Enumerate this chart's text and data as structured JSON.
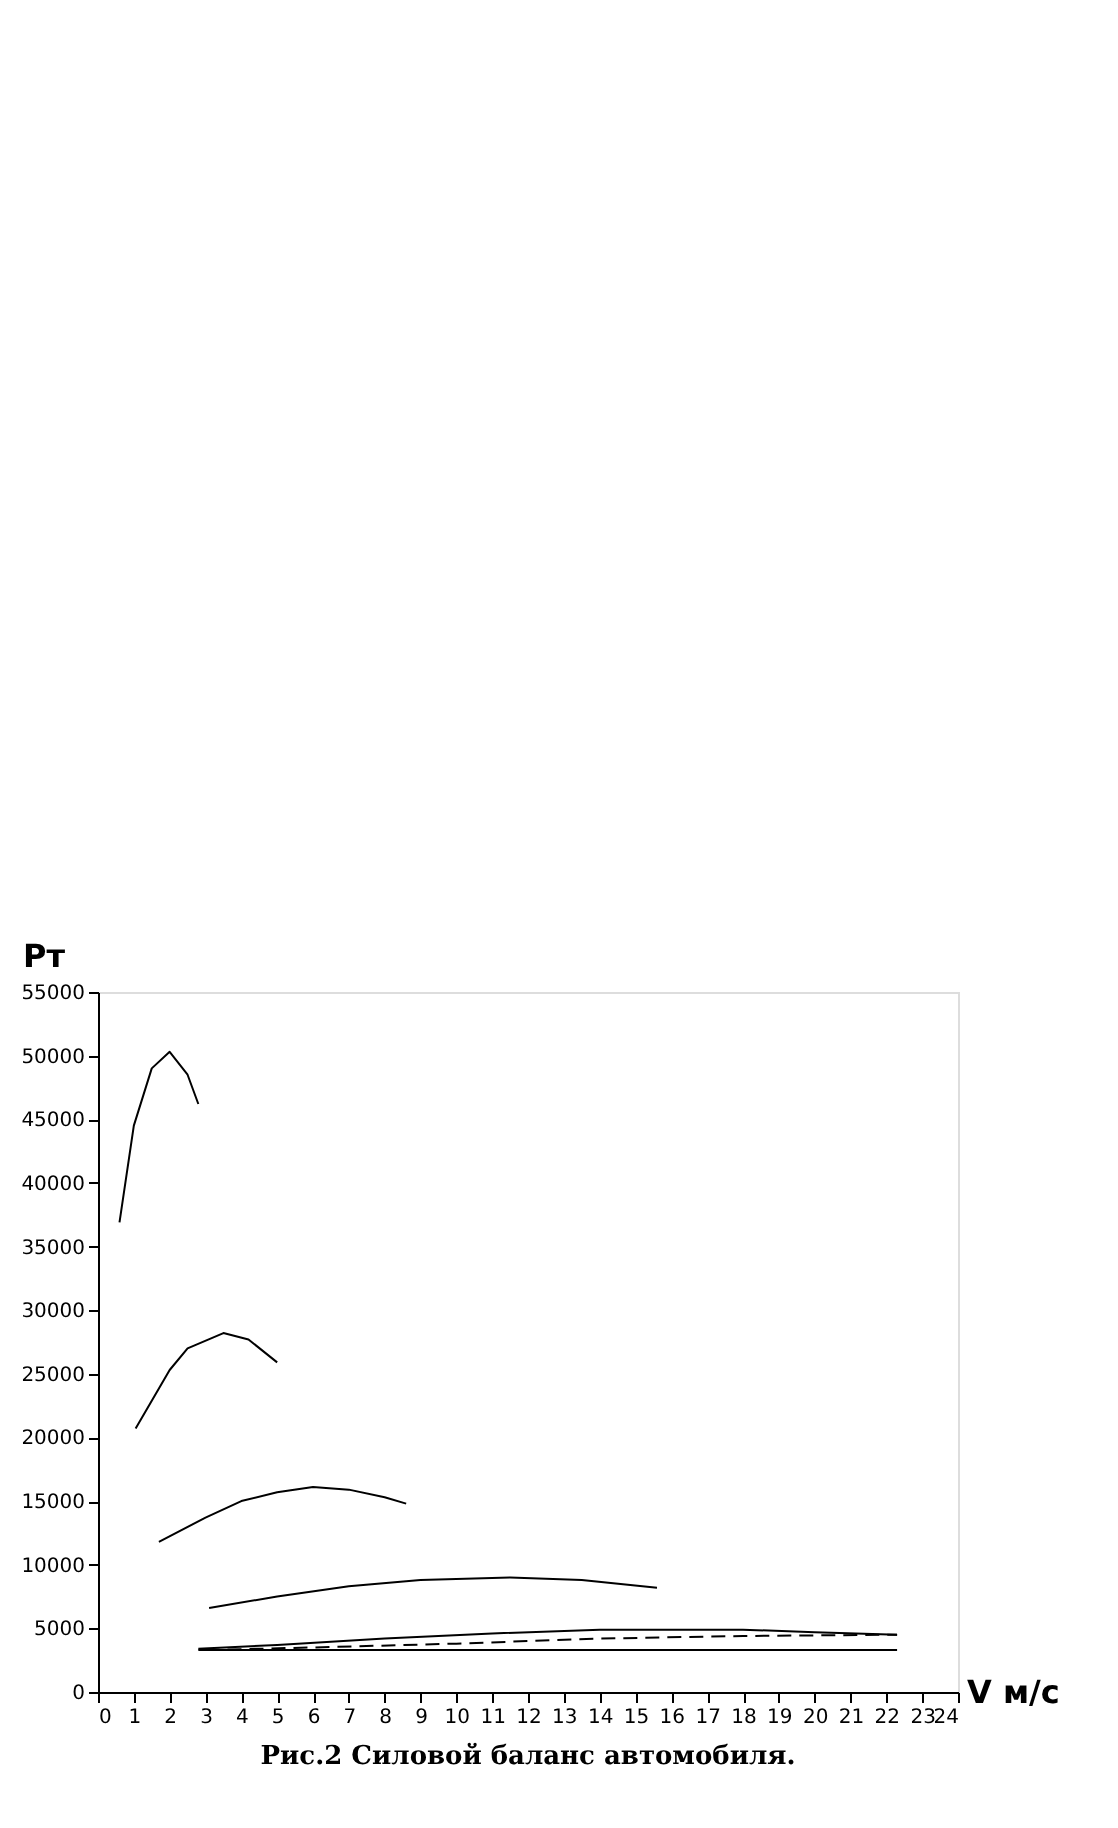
{
  "chart_data": {
    "type": "line",
    "xlabel": "V м/с",
    "ylabel": "Рт",
    "xlim": [
      0,
      24
    ],
    "xticks": [
      0,
      1,
      2,
      3,
      4,
      5,
      6,
      7,
      8,
      9,
      10,
      11,
      12,
      13,
      14,
      15,
      16,
      17,
      18,
      19,
      20,
      21,
      22,
      23,
      24
    ],
    "ylim": [
      0,
      55000
    ],
    "yticks": [
      0,
      5000,
      10000,
      15000,
      20000,
      25000,
      30000,
      35000,
      40000,
      45000,
      50000,
      55000
    ],
    "grid": false,
    "marker": "none",
    "series": [
      {
        "color": "#000000",
        "line_style": "solid",
        "x": [
          0.6,
          1.0,
          1.5,
          2.0,
          2.5,
          2.8
        ],
        "values": [
          36900,
          44500,
          49000,
          50300,
          48500,
          46200
        ]
      },
      {
        "color": "#000000",
        "line_style": "solid",
        "x": [
          1.05,
          2.0,
          2.5,
          3.5,
          4.2,
          5.0
        ],
        "values": [
          20700,
          25300,
          27000,
          28200,
          27700,
          25900
        ]
      },
      {
        "color": "#000000",
        "line_style": "solid",
        "x": [
          1.7,
          3.0,
          4.0,
          5.0,
          6.0,
          7.0,
          8.0,
          8.6
        ],
        "values": [
          11800,
          13700,
          15000,
          15700,
          16100,
          15900,
          15300,
          14800
        ]
      },
      {
        "color": "#000000",
        "line_style": "solid",
        "x": [
          3.1,
          5.0,
          7.0,
          9.0,
          11.5,
          13.5,
          15.6
        ],
        "values": [
          6600,
          7500,
          8300,
          8800,
          9000,
          8800,
          8200
        ]
      },
      {
        "color": "#000000",
        "line_style": "solid",
        "x": [
          2.8,
          5.0,
          8.0,
          11.0,
          14.0,
          18.0,
          20.0,
          22.3
        ],
        "values": [
          3400,
          3700,
          4200,
          4600,
          4900,
          4900,
          4700,
          4500
        ]
      },
      {
        "color": "#000000",
        "line_style": "dashed",
        "x": [
          3.0,
          6.0,
          10.0,
          14.0,
          18.0,
          22.3
        ],
        "values": [
          3300,
          3500,
          3800,
          4200,
          4400,
          4500
        ]
      },
      {
        "color": "#000000",
        "line_style": "solid",
        "x": [
          2.8,
          22.3
        ],
        "values": [
          3300,
          3300
        ]
      }
    ],
    "annotations": [
      "Рис.2 Силовой баланс автомобиля."
    ]
  }
}
